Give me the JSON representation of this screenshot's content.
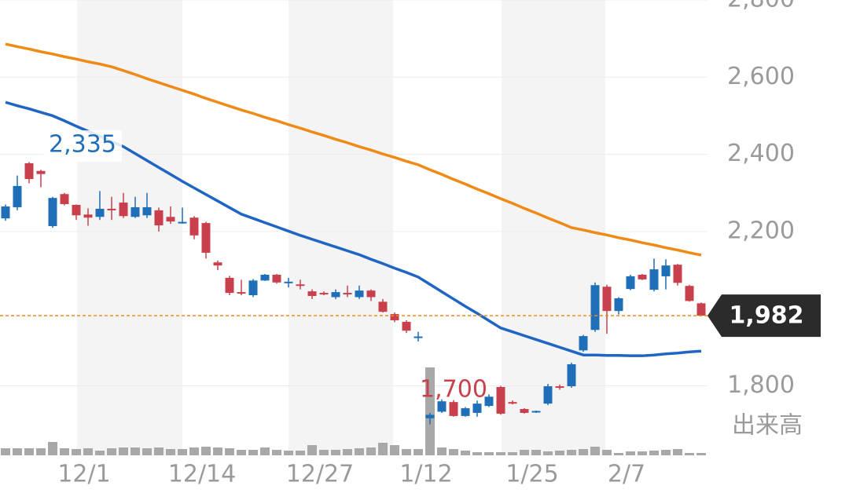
{
  "chart_data": {
    "type": "candlestick",
    "categories": [
      null,
      null,
      null,
      null,
      null,
      null,
      null,
      "12/1",
      null,
      null,
      null,
      null,
      null,
      null,
      null,
      null,
      null,
      "12/14",
      null,
      null,
      null,
      null,
      null,
      null,
      null,
      null,
      null,
      "12/27",
      null,
      null,
      null,
      null,
      null,
      null,
      null,
      null,
      "1/12",
      null,
      null,
      null,
      null,
      null,
      null,
      null,
      null,
      "1/25",
      null,
      null,
      null,
      null,
      null,
      null,
      null,
      "2/7",
      null,
      null,
      null,
      null,
      null,
      null
    ],
    "open": [
      2234,
      2263,
      2377,
      2357,
      2214,
      2297,
      2269,
      2244,
      2238,
      2259,
      2275,
      2238,
      2242,
      2255,
      2238,
      2222,
      2236,
      2222,
      2120,
      2080,
      2043,
      2035,
      2073,
      2088,
      2068,
      2063,
      2045,
      2041,
      2030,
      2041,
      2030,
      2047,
      2018,
      1986,
      1966,
      1926,
      1716,
      1733,
      1758,
      1722,
      1730,
      1748,
      1797,
      1758,
      1740,
      1732,
      1754,
      1799,
      1799,
      1892,
      1945,
      2057,
      1994,
      2051,
      2088,
      2049,
      2084,
      2114,
      2059,
      2014
    ],
    "high": [
      2270,
      2345,
      2380,
      2360,
      2290,
      2300,
      2270,
      2260,
      2305,
      2290,
      2300,
      2290,
      2300,
      2262,
      2265,
      2262,
      2240,
      2225,
      2125,
      2085,
      2075,
      2077,
      2090,
      2090,
      2080,
      2075,
      2050,
      2045,
      2050,
      2060,
      2060,
      2050,
      2025,
      1990,
      1970,
      1940,
      1730,
      1765,
      1763,
      1745,
      1762,
      1778,
      1800,
      1762,
      1742,
      1736,
      1805,
      1803,
      1860,
      1932,
      2068,
      2062,
      2030,
      2088,
      2090,
      2130,
      2128,
      2116,
      2062,
      2016
    ],
    "low": [
      2228,
      2255,
      2325,
      2315,
      2210,
      2268,
      2230,
      2215,
      2230,
      2230,
      2235,
      2235,
      2235,
      2200,
      2220,
      2220,
      2180,
      2130,
      2100,
      2035,
      2035,
      2030,
      2072,
      2065,
      2055,
      2050,
      2025,
      2035,
      2025,
      2030,
      2025,
      2020,
      1990,
      1965,
      1937,
      1915,
      1700,
      1730,
      1720,
      1720,
      1720,
      1745,
      1725,
      1752,
      1728,
      1730,
      1750,
      1790,
      1795,
      1888,
      1940,
      1935,
      1985,
      2048,
      2074,
      2045,
      2050,
      2060,
      2018,
      1980
    ],
    "close": [
      2265,
      2318,
      2336,
      2349,
      2287,
      2271,
      2242,
      2236,
      2259,
      2255,
      2240,
      2263,
      2263,
      2216,
      2226,
      2225,
      2190,
      2145,
      2112,
      2041,
      2039,
      2073,
      2088,
      2068,
      2070,
      2060,
      2033,
      2039,
      2043,
      2037,
      2047,
      2030,
      1992,
      1970,
      1943,
      1928,
      1725,
      1760,
      1722,
      1742,
      1754,
      1772,
      1728,
      1756,
      1730,
      1735,
      1799,
      1795,
      1856,
      1929,
      2061,
      1994,
      2027,
      2084,
      2076,
      2102,
      2112,
      2067,
      2020,
      1982
    ],
    "volume": [
      9,
      9,
      9,
      9,
      17,
      9,
      8,
      9,
      6,
      9,
      10,
      10,
      9,
      10,
      8,
      8,
      10,
      11,
      10,
      9,
      7,
      7,
      10,
      7,
      6,
      6,
      13,
      7,
      7,
      8,
      9,
      10,
      16,
      13,
      8,
      8,
      112,
      10,
      8,
      6,
      4,
      4,
      4,
      4,
      7,
      7,
      5,
      6,
      7,
      8,
      11,
      7,
      3,
      5,
      5,
      6,
      7,
      8,
      3,
      3
    ],
    "volume_label": "出来高",
    "up_color": "#1f6fb8",
    "down_color": "#c9404c",
    "volume_color": "#a8a8a8",
    "moving_averages": [
      {
        "color": "#ef8a17",
        "values": [
          2686,
          2679,
          2673,
          2666,
          2660,
          2653,
          2647,
          2640,
          2634,
          2627,
          2617,
          2607,
          2596,
          2586,
          2576,
          2566,
          2556,
          2545,
          2535,
          2525,
          2515,
          2506,
          2496,
          2487,
          2477,
          2468,
          2458,
          2449,
          2439,
          2430,
          2420,
          2411,
          2401,
          2392,
          2382,
          2373,
          2360,
          2348,
          2335,
          2323,
          2310,
          2298,
          2285,
          2273,
          2260,
          2248,
          2235,
          2223,
          2210,
          2204,
          2197,
          2191,
          2184,
          2178,
          2171,
          2165,
          2158,
          2152,
          2145,
          2139
        ]
      },
      {
        "color": "#1f66c4",
        "values": [
          2535,
          2526,
          2518,
          2509,
          2500,
          2487,
          2473,
          2460,
          2447,
          2433,
          2420,
          2402,
          2384,
          2366,
          2348,
          2330,
          2313,
          2296,
          2279,
          2262,
          2245,
          2234,
          2223,
          2212,
          2201,
          2190,
          2180,
          2170,
          2160,
          2150,
          2140,
          2128,
          2117,
          2105,
          2094,
          2082,
          2063,
          2044,
          2025,
          2006,
          1988,
          1969,
          1950,
          1940,
          1930,
          1920,
          1910,
          1900,
          1890,
          1880,
          1880,
          1879,
          1879,
          1878,
          1878,
          1880,
          1883,
          1885,
          1888,
          1890
        ]
      }
    ],
    "ylim": [
      1620,
      2800
    ],
    "yticks": [
      {
        "value": 1800,
        "label": "1,800"
      },
      {
        "value": 2200,
        "label": "2,200"
      },
      {
        "value": 2400,
        "label": "2,400"
      },
      {
        "value": 2600,
        "label": "2,600"
      },
      {
        "value": 2800,
        "label": "2,800"
      }
    ],
    "grid": true,
    "annotations": [
      {
        "text": "2,335",
        "color": "#1f6fb8"
      },
      {
        "text": "1,700",
        "color": "#c9404c"
      }
    ],
    "current": {
      "value": 1982,
      "label": "1,982",
      "color": "#ef8a17"
    }
  }
}
